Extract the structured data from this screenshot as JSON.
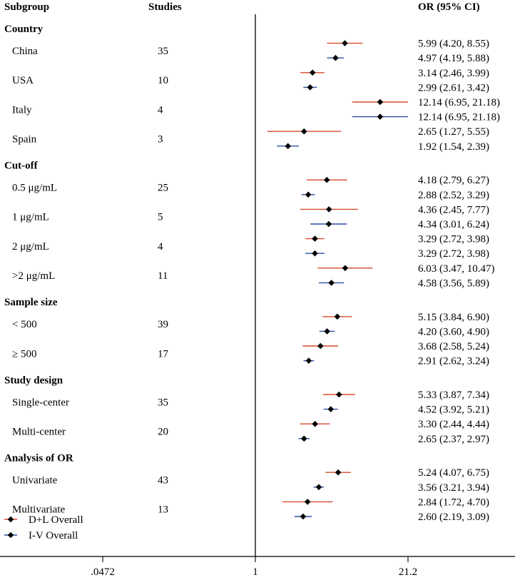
{
  "header": {
    "subgroup": "Subgroup",
    "studies": "Studies",
    "or": "OR (95% CI)"
  },
  "colors": {
    "dl": "#d94a2b",
    "iv": "#2c4fa3",
    "point": "#000000",
    "axis": "#000000"
  },
  "chart_data": {
    "type": "forest",
    "xscale": "log",
    "reference": 1,
    "xticks": [
      {
        "value": 0.0472,
        "label": ".0472"
      },
      {
        "value": 1,
        "label": "1"
      },
      {
        "value": 21.2,
        "label": "21.2"
      }
    ],
    "legend": [
      {
        "name": "D+L Overall",
        "key": "dl"
      },
      {
        "name": "I-V Overall",
        "key": "iv"
      }
    ],
    "groups": [
      {
        "name": "Country",
        "subgroups": [
          {
            "name": "China",
            "studies": "35",
            "dl": {
              "or": 5.99,
              "lo": 4.2,
              "hi": 8.55,
              "label": "5.99 (4.20, 8.55)"
            },
            "iv": {
              "or": 4.97,
              "lo": 4.19,
              "hi": 5.88,
              "label": "4.97 (4.19, 5.88)"
            }
          },
          {
            "name": "USA",
            "studies": "10",
            "dl": {
              "or": 3.14,
              "lo": 2.46,
              "hi": 3.99,
              "label": "3.14 (2.46, 3.99)"
            },
            "iv": {
              "or": 2.99,
              "lo": 2.61,
              "hi": 3.42,
              "label": "2.99 (2.61, 3.42)"
            }
          },
          {
            "name": "Italy",
            "studies": "4",
            "dl": {
              "or": 12.14,
              "lo": 6.95,
              "hi": 21.18,
              "label": "12.14 (6.95, 21.18)"
            },
            "iv": {
              "or": 12.14,
              "lo": 6.95,
              "hi": 21.18,
              "label": "12.14 (6.95, 21.18)"
            }
          },
          {
            "name": "Spain",
            "studies": "3",
            "dl": {
              "or": 2.65,
              "lo": 1.27,
              "hi": 5.55,
              "label": "2.65 (1.27, 5.55)"
            },
            "iv": {
              "or": 1.92,
              "lo": 1.54,
              "hi": 2.39,
              "label": "1.92 (1.54, 2.39)"
            }
          }
        ]
      },
      {
        "name": "Cut-off",
        "subgroups": [
          {
            "name": "0.5 μg/mL",
            "studies": "25",
            "dl": {
              "or": 4.18,
              "lo": 2.79,
              "hi": 6.27,
              "label": "4.18 (2.79, 6.27)"
            },
            "iv": {
              "or": 2.88,
              "lo": 2.52,
              "hi": 3.29,
              "label": "2.88 (2.52, 3.29)"
            }
          },
          {
            "name": "1 μg/mL",
            "studies": "5",
            "dl": {
              "or": 4.36,
              "lo": 2.45,
              "hi": 7.77,
              "label": "4.36 (2.45, 7.77)"
            },
            "iv": {
              "or": 4.34,
              "lo": 3.01,
              "hi": 6.24,
              "label": "4.34 (3.01, 6.24)"
            }
          },
          {
            "name": "2 μg/mL",
            "studies": "4",
            "dl": {
              "or": 3.29,
              "lo": 2.72,
              "hi": 3.98,
              "label": "3.29 (2.72, 3.98)"
            },
            "iv": {
              "or": 3.29,
              "lo": 2.72,
              "hi": 3.98,
              "label": "3.29 (2.72, 3.98)"
            }
          },
          {
            "name": ">2 μg/mL",
            "studies": "11",
            "dl": {
              "or": 6.03,
              "lo": 3.47,
              "hi": 10.47,
              "label": "6.03 (3.47, 10.47)"
            },
            "iv": {
              "or": 4.58,
              "lo": 3.56,
              "hi": 5.89,
              "label": "4.58 (3.56, 5.89)"
            }
          }
        ]
      },
      {
        "name": "Sample size",
        "subgroups": [
          {
            "name": "< 500",
            "studies": "39",
            "dl": {
              "or": 5.15,
              "lo": 3.84,
              "hi": 6.9,
              "label": "5.15 (3.84, 6.90)"
            },
            "iv": {
              "or": 4.2,
              "lo": 3.6,
              "hi": 4.9,
              "label": "4.20 (3.60, 4.90)"
            }
          },
          {
            "name": "≥ 500",
            "studies": "17",
            "dl": {
              "or": 3.68,
              "lo": 2.58,
              "hi": 5.24,
              "label": "3.68 (2.58, 5.24)"
            },
            "iv": {
              "or": 2.91,
              "lo": 2.62,
              "hi": 3.24,
              "label": "2.91 (2.62, 3.24)"
            }
          }
        ]
      },
      {
        "name": "Study design",
        "subgroups": [
          {
            "name": "Single-center",
            "studies": "35",
            "dl": {
              "or": 5.33,
              "lo": 3.87,
              "hi": 7.34,
              "label": "5.33 (3.87, 7.34)"
            },
            "iv": {
              "or": 4.52,
              "lo": 3.92,
              "hi": 5.21,
              "label": "4.52 (3.92, 5.21)"
            }
          },
          {
            "name": "Multi-center",
            "studies": "20",
            "dl": {
              "or": 3.3,
              "lo": 2.44,
              "hi": 4.44,
              "label": "3.30 (2.44, 4.44)"
            },
            "iv": {
              "or": 2.65,
              "lo": 2.37,
              "hi": 2.97,
              "label": "2.65 (2.37, 2.97)"
            }
          }
        ]
      },
      {
        "name": "Analysis of OR",
        "subgroups": [
          {
            "name": "Univariate",
            "studies": "43",
            "dl": {
              "or": 5.24,
              "lo": 4.07,
              "hi": 6.75,
              "label": "5.24 (4.07, 6.75)"
            },
            "iv": {
              "or": 3.56,
              "lo": 3.21,
              "hi": 3.94,
              "label": "3.56 (3.21, 3.94)"
            }
          },
          {
            "name": "Multivariate",
            "studies": "13",
            "dl": {
              "or": 2.84,
              "lo": 1.72,
              "hi": 4.7,
              "label": "2.84 (1.72, 4.70)"
            },
            "iv": {
              "or": 2.6,
              "lo": 2.19,
              "hi": 3.09,
              "label": "2.60 (2.19, 3.09)"
            }
          }
        ]
      }
    ]
  }
}
